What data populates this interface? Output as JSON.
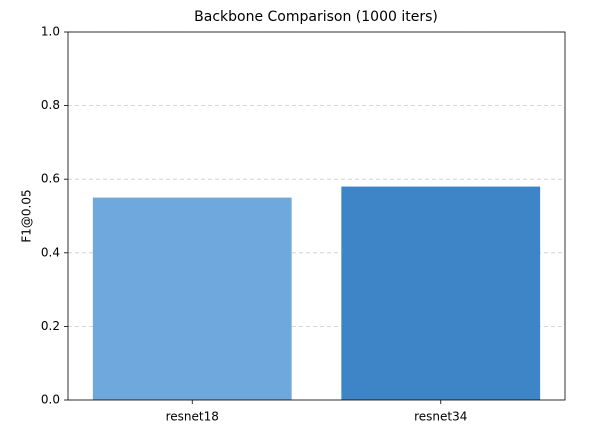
{
  "chart_data": {
    "type": "bar",
    "title": "Backbone Comparison (1000 iters)",
    "ylabel": "F1@0.05",
    "categories": [
      "resnet18",
      "resnet34"
    ],
    "values": [
      0.55,
      0.58
    ],
    "colors": [
      "#6fa8dc",
      "#3d85c6"
    ],
    "ylim": [
      0,
      1
    ],
    "yticks": [
      {
        "value": 0,
        "label": "0.0"
      },
      0.2,
      0.4,
      0.6,
      0.8,
      {
        "value": 1,
        "label": "1.0"
      }
    ],
    "grid": true
  }
}
